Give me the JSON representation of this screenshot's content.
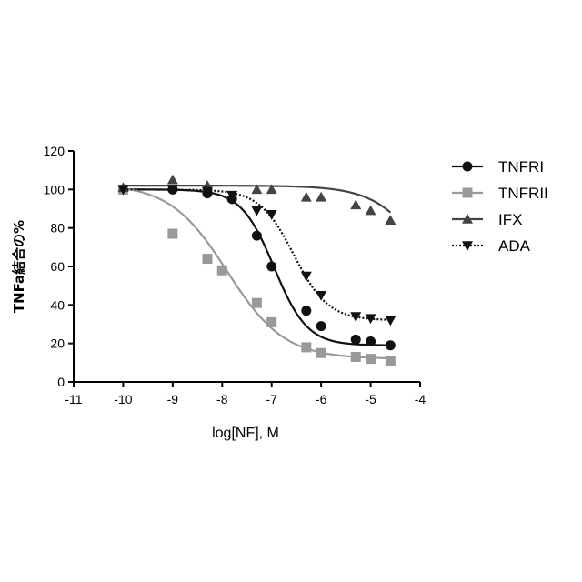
{
  "chart_data": {
    "type": "line",
    "xlabel": "log[NF], M",
    "ylabel": "TNFa結合の%",
    "xlim": [
      -11,
      -4
    ],
    "ylim": [
      0,
      120
    ],
    "xticks": [
      -11,
      -10,
      -9,
      -8,
      -7,
      -6,
      -5,
      -4
    ],
    "yticks": [
      0,
      20,
      40,
      60,
      80,
      100,
      120
    ],
    "grid": false,
    "legend_position": "right",
    "series": [
      {
        "name": "TNFRI",
        "marker": "circle",
        "color": "#111111",
        "line_style": "solid",
        "points": [
          {
            "x": -10.0,
            "y": 100
          },
          {
            "x": -9.0,
            "y": 100
          },
          {
            "x": -8.3,
            "y": 98
          },
          {
            "x": -7.8,
            "y": 95
          },
          {
            "x": -7.3,
            "y": 76
          },
          {
            "x": -7.0,
            "y": 60
          },
          {
            "x": -6.3,
            "y": 37
          },
          {
            "x": -6.0,
            "y": 29
          },
          {
            "x": -5.3,
            "y": 22
          },
          {
            "x": -5.0,
            "y": 21
          },
          {
            "x": -4.6,
            "y": 19
          }
        ],
        "curve": {
          "top": 100,
          "bottom": 19,
          "logEC50": -6.95,
          "hill": 1.3
        }
      },
      {
        "name": "TNFRII",
        "marker": "square",
        "color": "#999999",
        "line_style": "solid",
        "points": [
          {
            "x": -10.0,
            "y": 100
          },
          {
            "x": -9.0,
            "y": 77
          },
          {
            "x": -8.3,
            "y": 64
          },
          {
            "x": -8.0,
            "y": 58
          },
          {
            "x": -7.3,
            "y": 41
          },
          {
            "x": -7.0,
            "y": 31
          },
          {
            "x": -6.3,
            "y": 18
          },
          {
            "x": -6.0,
            "y": 15
          },
          {
            "x": -5.3,
            "y": 13
          },
          {
            "x": -5.0,
            "y": 12
          },
          {
            "x": -4.6,
            "y": 11
          }
        ],
        "curve": {
          "top": 103,
          "bottom": 12,
          "logEC50": -7.9,
          "hill": 0.75
        }
      },
      {
        "name": "IFX",
        "marker": "triangle-up",
        "color": "#444444",
        "line_style": "solid",
        "points": [
          {
            "x": -10.0,
            "y": 101
          },
          {
            "x": -9.0,
            "y": 105
          },
          {
            "x": -8.3,
            "y": 102
          },
          {
            "x": -7.3,
            "y": 100
          },
          {
            "x": -7.0,
            "y": 100
          },
          {
            "x": -6.3,
            "y": 96
          },
          {
            "x": -6.0,
            "y": 96
          },
          {
            "x": -5.3,
            "y": 92
          },
          {
            "x": -5.0,
            "y": 89
          },
          {
            "x": -4.6,
            "y": 84
          }
        ],
        "curve": {
          "top": 102,
          "bottom": 0,
          "logEC50": -3.6,
          "hill": 0.8
        }
      },
      {
        "name": "ADA",
        "marker": "triangle-down",
        "color": "#111111",
        "line_style": "dotted",
        "points": [
          {
            "x": -10.0,
            "y": 100
          },
          {
            "x": -9.0,
            "y": 100
          },
          {
            "x": -8.3,
            "y": 99
          },
          {
            "x": -7.8,
            "y": 97
          },
          {
            "x": -7.3,
            "y": 89
          },
          {
            "x": -7.0,
            "y": 87
          },
          {
            "x": -6.3,
            "y": 55
          },
          {
            "x": -6.0,
            "y": 45
          },
          {
            "x": -5.3,
            "y": 34
          },
          {
            "x": -5.0,
            "y": 33
          },
          {
            "x": -4.6,
            "y": 32
          }
        ],
        "curve": {
          "top": 100,
          "bottom": 32,
          "logEC50": -6.55,
          "hill": 1.25
        }
      }
    ]
  }
}
